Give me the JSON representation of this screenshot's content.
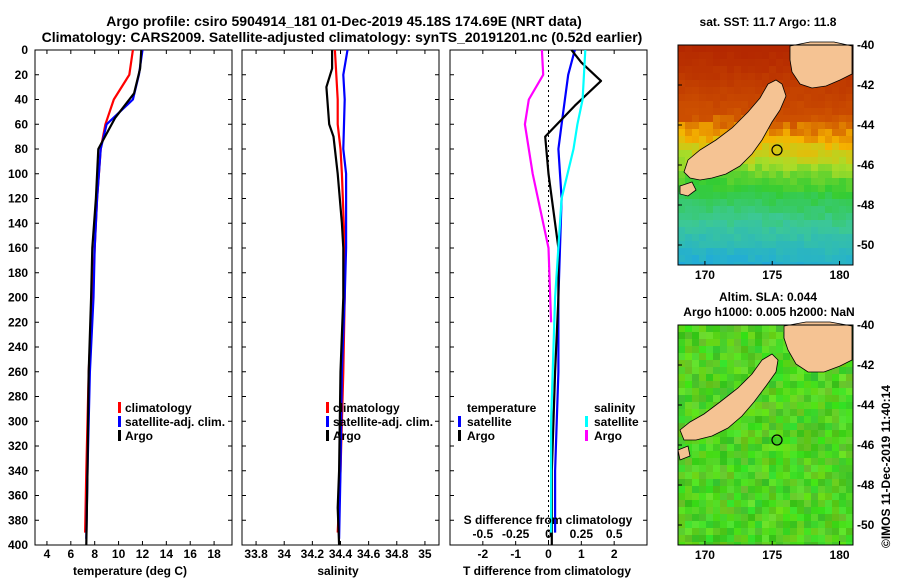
{
  "title": {
    "line1": "Argo profile: csiro 5904914_181 01-Dec-2019 45.18S 174.69E (NRT data)",
    "line2": "Climatology: CARS2009. Satellite-adjusted climatology: synTS_20191201.nc (0.52d earlier)"
  },
  "colors": {
    "climatology": "#ff0000",
    "satellite": "#0000ff",
    "argo": "#000000",
    "sat_salinity": "#00ffff",
    "argo_salinity_diff": "#ff00ff",
    "land": "#f5c393",
    "sst_warm": "#b42d00",
    "sst_mid": "#f6b400",
    "sst_green": "#33cc33",
    "sst_cool": "#1fb0d6",
    "sla_base": "#44cc22"
  },
  "depth_axis": {
    "ticks": [
      "0",
      "20",
      "40",
      "60",
      "80",
      "100",
      "120",
      "140",
      "160",
      "180",
      "200",
      "220",
      "240",
      "260",
      "280",
      "300",
      "320",
      "340",
      "360",
      "380",
      "400"
    ]
  },
  "chart_data": [
    {
      "type": "line",
      "name": "temperature",
      "xlabel": "temperature (deg C)",
      "ylabel": "depth",
      "xlim": [
        3,
        19.5
      ],
      "ylim": [
        400,
        0
      ],
      "xticks": [
        "4",
        "6",
        "8",
        "10",
        "12",
        "14",
        "16",
        "18"
      ],
      "series": [
        {
          "name": "climatology",
          "color": "#ff0000",
          "x": [
            11.2,
            10.9,
            9.6,
            8.9,
            8.5,
            8.2,
            8.0,
            7.8,
            7.5,
            7.3,
            7.2
          ],
          "y": [
            0,
            20,
            40,
            60,
            80,
            120,
            160,
            200,
            260,
            340,
            390
          ]
        },
        {
          "name": "satellite-adj. clim.",
          "color": "#0000ff",
          "x": [
            12.0,
            11.7,
            11.2,
            9.0,
            8.5,
            8.2,
            8.0,
            7.9,
            7.6,
            7.4,
            7.3
          ],
          "y": [
            0,
            20,
            40,
            60,
            80,
            120,
            160,
            200,
            260,
            340,
            395
          ]
        },
        {
          "name": "Argo",
          "color": "#000000",
          "x": [
            11.9,
            11.8,
            11.3,
            9.7,
            8.3,
            8.1,
            7.8,
            7.7,
            7.5,
            7.4,
            7.3
          ],
          "y": [
            0,
            15,
            35,
            55,
            80,
            120,
            160,
            200,
            260,
            340,
            400
          ]
        }
      ],
      "legend": {
        "placement": "bottom-right",
        "items": [
          "climatology",
          "satellite-adj. clim.",
          "Argo"
        ]
      }
    },
    {
      "type": "line",
      "name": "salinity",
      "xlabel": "salinity",
      "xlim": [
        33.7,
        35.1
      ],
      "ylim": [
        400,
        0
      ],
      "xticks": [
        "33.8",
        "34",
        "34.2",
        "34.4",
        "34.6",
        "34.8",
        "35"
      ],
      "series": [
        {
          "name": "climatology",
          "color": "#ff0000",
          "x": [
            34.36,
            34.38,
            34.38,
            34.4,
            34.41,
            34.43,
            34.43,
            34.42,
            34.4,
            34.38
          ],
          "y": [
            0,
            40,
            60,
            80,
            100,
            160,
            200,
            260,
            340,
            390
          ]
        },
        {
          "name": "satellite-adj. clim.",
          "color": "#0000ff",
          "x": [
            34.45,
            34.42,
            34.43,
            34.42,
            34.44,
            34.44,
            34.43,
            34.41,
            34.4,
            34.39
          ],
          "y": [
            0,
            20,
            40,
            80,
            100,
            160,
            200,
            260,
            340,
            395
          ]
        },
        {
          "name": "Argo",
          "color": "#000000",
          "x": [
            34.34,
            34.34,
            34.3,
            34.32,
            34.35,
            34.38,
            34.41,
            34.42,
            34.42,
            34.4,
            34.39,
            34.38,
            34.39
          ],
          "y": [
            0,
            15,
            30,
            60,
            70,
            100,
            140,
            160,
            200,
            260,
            340,
            370,
            400
          ]
        }
      ],
      "legend": {
        "placement": "bottom-right",
        "items": [
          "climatology",
          "satellite-adj. clim.",
          "Argo"
        ]
      }
    },
    {
      "type": "line",
      "name": "difference from climatology",
      "xlabel": "T difference from climatology",
      "secondary_xlabel": "S difference from climatology",
      "xlim": [
        -3,
        3
      ],
      "ylim": [
        400,
        0
      ],
      "xticks": [
        "-2",
        "-1",
        "0",
        "1",
        "2"
      ],
      "secondary_xticks": [
        "-0.5",
        "-0.25",
        "0",
        "0.25",
        "0.5"
      ],
      "series": [
        {
          "name": "temperature satellite",
          "color": "#0000ff",
          "x": [
            0.8,
            0.6,
            0.5,
            0.4,
            0.3,
            0.4,
            0.3,
            0.3,
            0.2,
            0.2
          ],
          "y": [
            0,
            20,
            40,
            60,
            80,
            120,
            200,
            260,
            340,
            390
          ]
        },
        {
          "name": "temperature Argo",
          "color": "#000000",
          "x": [
            0.7,
            1.0,
            1.6,
            0.8,
            -0.1,
            0.0,
            0.3,
            0.3,
            0.2,
            0.1,
            0.1
          ],
          "y": [
            0,
            10,
            25,
            45,
            70,
            100,
            160,
            200,
            260,
            340,
            400
          ]
        },
        {
          "name": "salinity satellite",
          "color": "#00ffff",
          "x": [
            0.28,
            0.26,
            0.22,
            0.19,
            0.1,
            0.05,
            0.02,
            0.02
          ],
          "y": [
            0,
            40,
            60,
            80,
            120,
            200,
            300,
            390
          ]
        },
        {
          "name": "salinity Argo",
          "color": "#ff00ff",
          "x": [
            -0.05,
            -0.04,
            -0.15,
            -0.18,
            -0.12,
            0.0,
            0.02
          ],
          "y": [
            0,
            20,
            40,
            60,
            100,
            160,
            220
          ]
        }
      ],
      "legend": {
        "placement": "bottom",
        "temperature_heading": "temperature",
        "salinity_heading": "salinity",
        "temperature_items": [
          "satellite",
          "Argo"
        ],
        "salinity_items": [
          "satellite",
          "Argo"
        ]
      }
    },
    {
      "type": "heatmap",
      "name": "satellite SST map",
      "title": "sat. SST: 11.7 Argo: 11.8",
      "xlim": [
        168,
        181
      ],
      "ylim": [
        -51,
        -40
      ],
      "xticks": [
        "170",
        "175",
        "180"
      ],
      "yticks": [
        "-40",
        "-42",
        "-44",
        "-46",
        "-48",
        "-50"
      ],
      "argo_position": {
        "lon": 174.69,
        "lat": -45.18
      }
    },
    {
      "type": "heatmap",
      "name": "altimeter SLA map",
      "title_line1": "Altim. SLA: 0.044",
      "title_line2": "Argo h1000: 0.005 h2000: NaN",
      "xlim": [
        168,
        181
      ],
      "ylim": [
        -51,
        -40
      ],
      "xticks": [
        "170",
        "175",
        "180"
      ],
      "yticks": [
        "-40",
        "-42",
        "-44",
        "-46",
        "-48",
        "-50"
      ],
      "argo_position": {
        "lon": 174.69,
        "lat": -45.18
      }
    }
  ],
  "credit": "©IMOS 11-Dec-2019 11:40:14"
}
